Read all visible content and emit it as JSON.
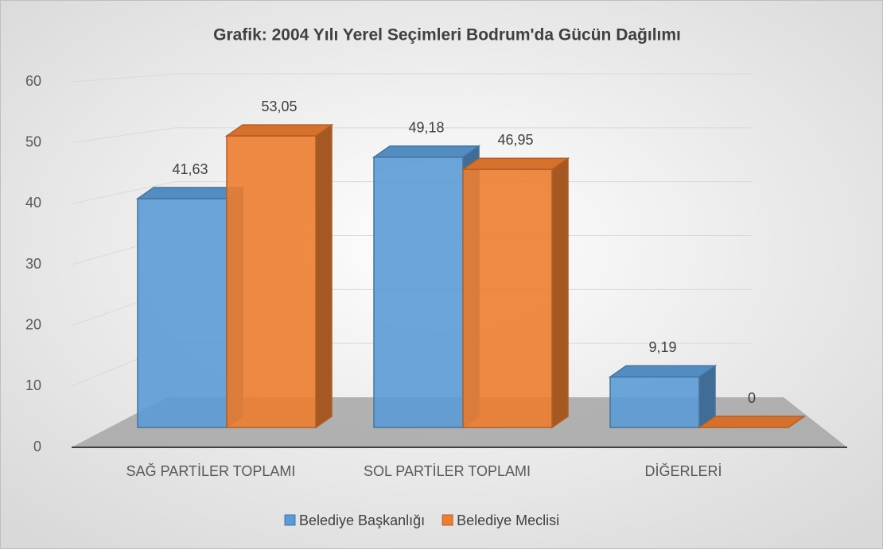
{
  "chart_data": {
    "type": "bar3d",
    "title": "Grafik: 2004 Yılı Yerel Seçimleri Bodrum'da Gücün Dağılımı",
    "categories": [
      "SAĞ PARTİLER TOPLAMI",
      "SOL PARTİLER TOPLAMI",
      "DİĞERLERİ"
    ],
    "series": [
      {
        "name": "Belediye Başkanlığı",
        "color": "#5b9bd5",
        "values": [
          41.63,
          49.18,
          9.19
        ],
        "value_labels": [
          "41,63",
          "49,18",
          "9,19"
        ]
      },
      {
        "name": "Belediye Meclisi",
        "color": "#ed7d31",
        "values": [
          53.05,
          46.95,
          0
        ],
        "value_labels": [
          "53,05",
          "46,95",
          "0"
        ]
      }
    ],
    "ylim": [
      0,
      60
    ],
    "yticks": [
      0,
      10,
      20,
      30,
      40,
      50,
      60
    ],
    "grid": true,
    "legend": "bottom"
  }
}
